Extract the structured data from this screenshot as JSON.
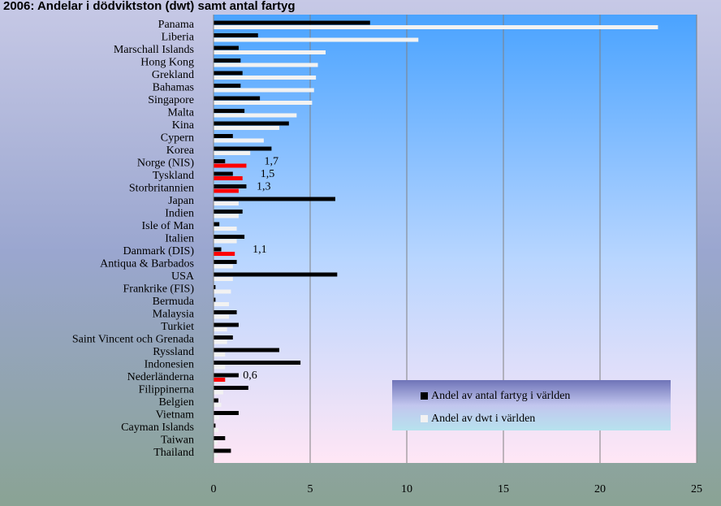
{
  "chart_data": {
    "type": "bar",
    "orientation": "horizontal",
    "title": "2006: Andelar i dödviktston (dwt) samt antal fartyg",
    "categories": [
      "Panama",
      "Liberia",
      "Marschall Islands",
      "Hong Kong",
      "Grekland",
      "Bahamas",
      "Singapore",
      "Malta",
      "Kina",
      "Cypern",
      "Korea",
      "Norge (NIS)",
      "Tyskland",
      "Storbritannien",
      "Japan",
      "Indien",
      "Isle of Man",
      "Italien",
      "Danmark (DIS)",
      "Antiqua & Barbados",
      "USA",
      "Frankrike (FIS)",
      "Bermuda",
      "Malaysia",
      "Turkiet",
      "Saint Vincent och Grenada",
      "Ryssland",
      "Indonesien",
      "Nederländerna",
      "Filippinerna",
      "Belgien",
      "Vietnam",
      "Cayman Islands",
      "Taiwan",
      "Thailand"
    ],
    "series": [
      {
        "name": "Andel av antal fartyg i världen",
        "color": "#000000",
        "values": [
          8.1,
          2.3,
          1.3,
          1.4,
          1.5,
          1.4,
          2.4,
          1.6,
          3.9,
          1.0,
          3.0,
          0.6,
          1.0,
          1.7,
          6.3,
          1.5,
          0.3,
          1.6,
          0.4,
          1.2,
          6.4,
          0.1,
          0.1,
          1.2,
          1.3,
          1.0,
          3.4,
          4.5,
          1.3,
          1.8,
          0.25,
          1.3,
          0.1,
          0.6,
          0.9
        ]
      },
      {
        "name": "Andel av dwt i världen",
        "color": "#f2f2f2",
        "colors": [
          "#f2f2f2",
          "#f2f2f2",
          "#f2f2f2",
          "#f2f2f2",
          "#f2f2f2",
          "#f2f2f2",
          "#f2f2f2",
          "#f2f2f2",
          "#f2f2f2",
          "#f2f2f2",
          "#f2f2f2",
          "#ff0000",
          "#ff0000",
          "#ff0000",
          "#f2f2f2",
          "#f2f2f2",
          "#f2f2f2",
          "#f2f2f2",
          "#ff0000",
          "#f2f2f2",
          "#f2f2f2",
          "#f2f2f2",
          "#f2f2f2",
          "#f2f2f2",
          "#f2f2f2",
          "#f2f2f2",
          "#f2f2f2",
          "#f2f2f2",
          "#ff0000",
          "#f2f2f2",
          "#f2f2f2",
          "#f2f2f2",
          "#f2f2f2",
          "#f2f2f2",
          "#f2f2f2"
        ],
        "values": [
          23.0,
          10.6,
          5.8,
          5.4,
          5.3,
          5.2,
          5.1,
          4.3,
          3.4,
          2.6,
          1.9,
          1.7,
          1.5,
          1.3,
          1.3,
          1.3,
          1.2,
          1.2,
          1.1,
          1.0,
          1.0,
          0.9,
          0.8,
          0.8,
          0.7,
          0.7,
          0.6,
          0.6,
          0.6,
          0.5,
          0.4,
          0.3,
          0.25,
          0.2,
          0.2
        ],
        "value_labels": [
          null,
          null,
          null,
          null,
          null,
          null,
          null,
          null,
          null,
          null,
          null,
          "1,7",
          "1,5",
          "1,3",
          null,
          null,
          null,
          null,
          "1,1",
          null,
          null,
          null,
          null,
          null,
          null,
          null,
          null,
          null,
          "0,6",
          null,
          null,
          null,
          null,
          null,
          null
        ]
      }
    ],
    "xlim": [
      0,
      25
    ],
    "xticks": [
      0,
      5,
      10,
      15,
      20,
      25
    ],
    "grid": true
  }
}
